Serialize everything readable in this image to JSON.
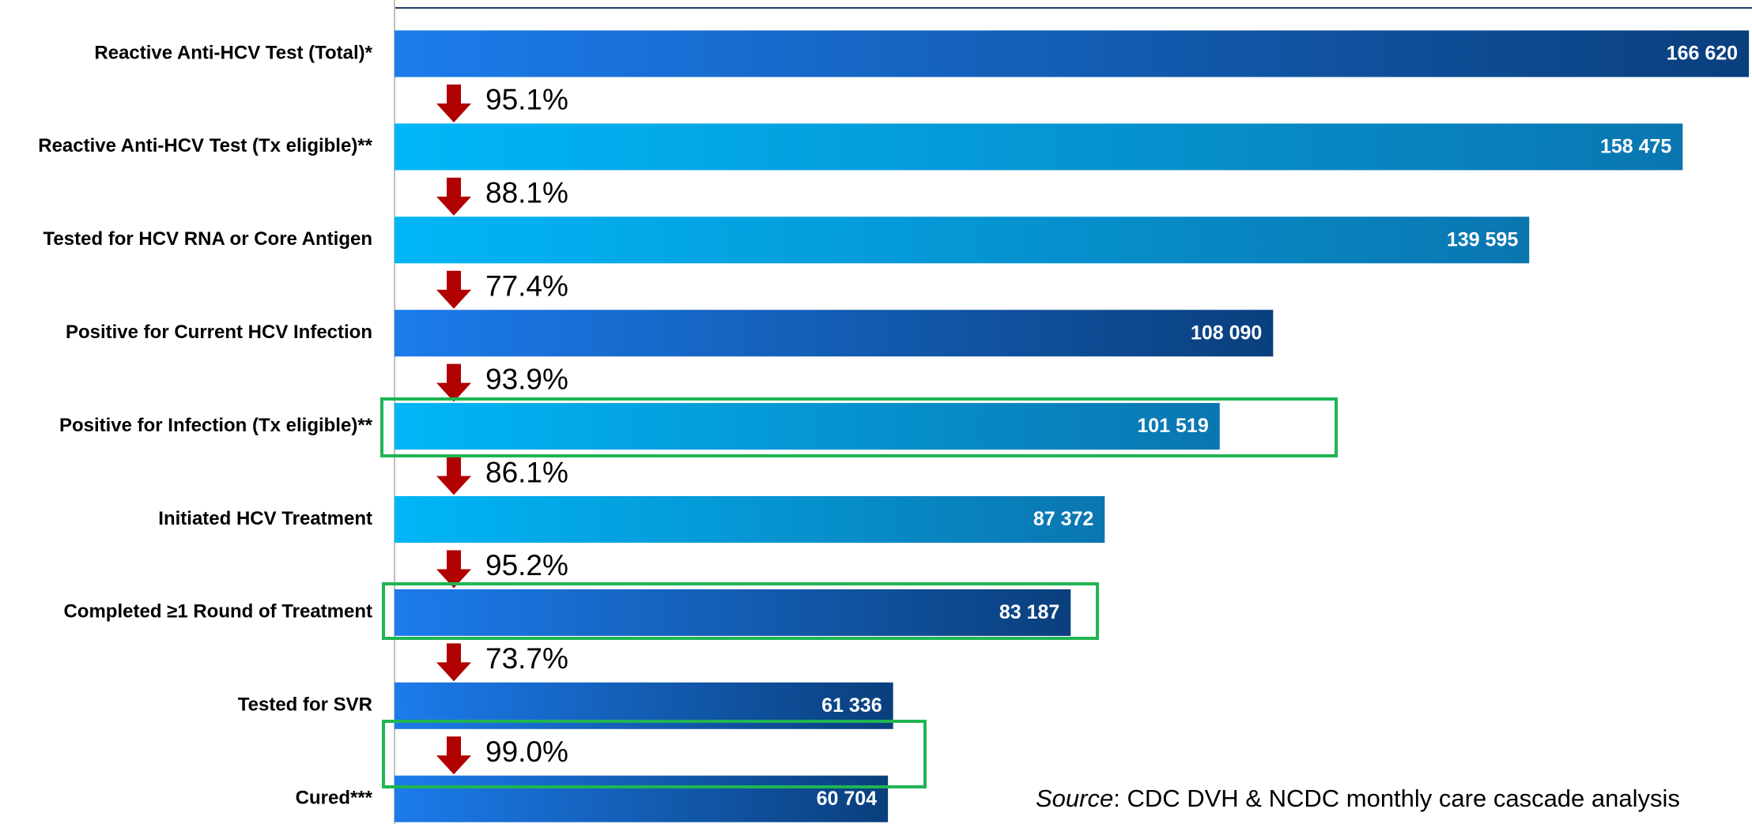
{
  "chart_data": {
    "type": "bar",
    "orientation": "horizontal",
    "categories": [
      "Reactive Anti-HCV Test (Total)*",
      "Reactive Anti-HCV Test (Tx eligible)**",
      "Tested for HCV RNA or Core Antigen",
      "Positive for Current HCV Infection",
      "Positive for Infection (Tx eligible)**",
      "Initiated HCV Treatment",
      "Completed ≥1 Round of Treatment",
      "Tested for SVR",
      "Cured***"
    ],
    "values": [
      166620,
      158475,
      139595,
      108090,
      101519,
      87372,
      83187,
      61336,
      60704
    ],
    "value_labels": [
      "166 620",
      "158 475",
      "139 595",
      "108 090",
      "101 519",
      "87 372",
      "83 187",
      "61 336",
      "60 704"
    ],
    "colors": [
      "#0a3f7d",
      "#0a76b0",
      "#0a76b0",
      "#0a3f7d",
      "#0a76b0",
      "#0a76b0",
      "#0a3f7d",
      "#0a3f7d",
      "#0a3f7d"
    ],
    "conversion_rates": [
      95.1,
      88.1,
      77.4,
      93.9,
      86.1,
      95.2,
      73.7,
      99.0
    ],
    "conversion_labels": [
      "95.1%",
      "88.1%",
      "77.4%",
      "93.9%",
      "86.1%",
      "95.2%",
      "73.7%",
      "99.0%"
    ],
    "arrow_color": "#b00000",
    "xlim": [
      0,
      167000
    ],
    "source_label": "Source",
    "source": ": CDC DVH & NCDC monthly care cascade analysis"
  }
}
